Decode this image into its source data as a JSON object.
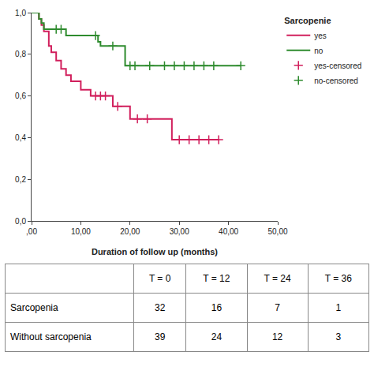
{
  "chart_data": {
    "type": "line",
    "x_label": "Duration of follow up (months)",
    "legend_title": "Sarcopenie",
    "legend": "right",
    "grid": false,
    "xlim": [
      0,
      50
    ],
    "xticks": [
      {
        "value": 0,
        "label": ",00"
      },
      {
        "value": 10,
        "label": "10,00"
      },
      {
        "value": 20,
        "label": "20,00"
      },
      {
        "value": 30,
        "label": "30,00"
      },
      {
        "value": 40,
        "label": "40,00"
      },
      {
        "value": 50,
        "label": "50,00"
      }
    ],
    "ylim": [
      0,
      1
    ],
    "yticks": [
      {
        "value": 0,
        "label": "0,0"
      },
      {
        "value": 0.2,
        "label": "0,2"
      },
      {
        "value": 0.4,
        "label": "0,4"
      },
      {
        "value": 0.6,
        "label": "0,6"
      },
      {
        "value": 0.8,
        "label": "0,8"
      },
      {
        "value": 1,
        "label": "1,0"
      }
    ],
    "series": [
      {
        "name": "yes",
        "type": "line",
        "line_style": "step",
        "color": "#d11f5c",
        "x": [
          0,
          1.5,
          2,
          2.5,
          3.5,
          4,
          5,
          6,
          7,
          8,
          10,
          12,
          16.5,
          20,
          28.5,
          38
        ],
        "values": [
          1,
          0.97,
          0.94,
          0.91,
          0.84,
          0.81,
          0.77,
          0.73,
          0.7,
          0.67,
          0.63,
          0.6,
          0.55,
          0.49,
          0.39,
          0.39
        ]
      },
      {
        "name": "no",
        "type": "line",
        "line_style": "step",
        "color": "#2e8b2e",
        "x": [
          0,
          1.5,
          2,
          2.5,
          7,
          13.5,
          14,
          19,
          42.5
        ],
        "values": [
          1,
          0.97,
          0.95,
          0.92,
          0.89,
          0.86,
          0.84,
          0.745,
          0.745
        ]
      },
      {
        "name": "yes-censored",
        "type": "scatter",
        "marker": "plus",
        "color": "#d11f5c",
        "x": [
          13,
          14,
          15,
          17.5,
          21.5,
          23.5,
          30,
          32,
          34,
          36,
          38
        ],
        "values": [
          0.6,
          0.6,
          0.6,
          0.55,
          0.49,
          0.49,
          0.39,
          0.39,
          0.39,
          0.39,
          0.39
        ]
      },
      {
        "name": "no-censored",
        "type": "scatter",
        "marker": "plus",
        "color": "#2e8b2e",
        "x": [
          5,
          6,
          13,
          16.5,
          20,
          21,
          24,
          27,
          29,
          31,
          33,
          35,
          37,
          42.5
        ],
        "values": [
          0.92,
          0.92,
          0.89,
          0.84,
          0.745,
          0.745,
          0.745,
          0.745,
          0.745,
          0.745,
          0.745,
          0.745,
          0.745,
          0.745
        ]
      }
    ]
  },
  "table": {
    "header": [
      "",
      "T = 0",
      "T = 12",
      "T = 24",
      "T = 36"
    ],
    "rows": [
      [
        "Sarcopenia",
        "32",
        "16",
        "7",
        "1"
      ],
      [
        "Without sarcopenia",
        "39",
        "24",
        "12",
        "3"
      ]
    ]
  }
}
